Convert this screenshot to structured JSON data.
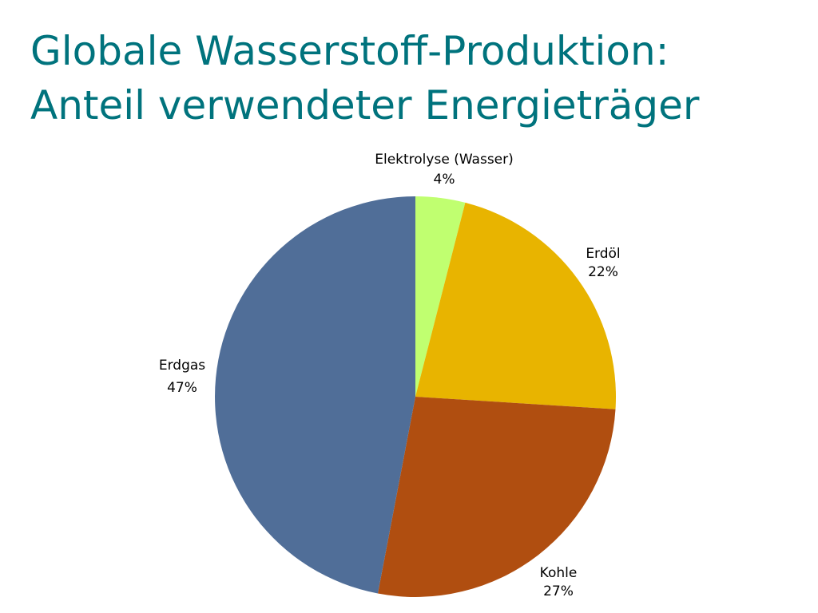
{
  "title": {
    "line1": "Globale Wasserstoff-Produktion:",
    "line2": "Anteil verwendeter Energieträger"
  },
  "chart_data": {
    "type": "pie",
    "start_angle_deg": 0,
    "direction": "clockwise",
    "slices": [
      {
        "label": "Elektrolyse (Wasser)",
        "value": 4,
        "display": "4%",
        "color": "#c0ff70"
      },
      {
        "label": "Erdöl",
        "value": 22,
        "display": "22%",
        "color": "#e8b400"
      },
      {
        "label": "Kohle",
        "value": 27,
        "display": "27%",
        "color": "#b04e10"
      },
      {
        "label": "Erdgas",
        "value": 47,
        "display": "47%",
        "color": "#506e98"
      }
    ]
  }
}
